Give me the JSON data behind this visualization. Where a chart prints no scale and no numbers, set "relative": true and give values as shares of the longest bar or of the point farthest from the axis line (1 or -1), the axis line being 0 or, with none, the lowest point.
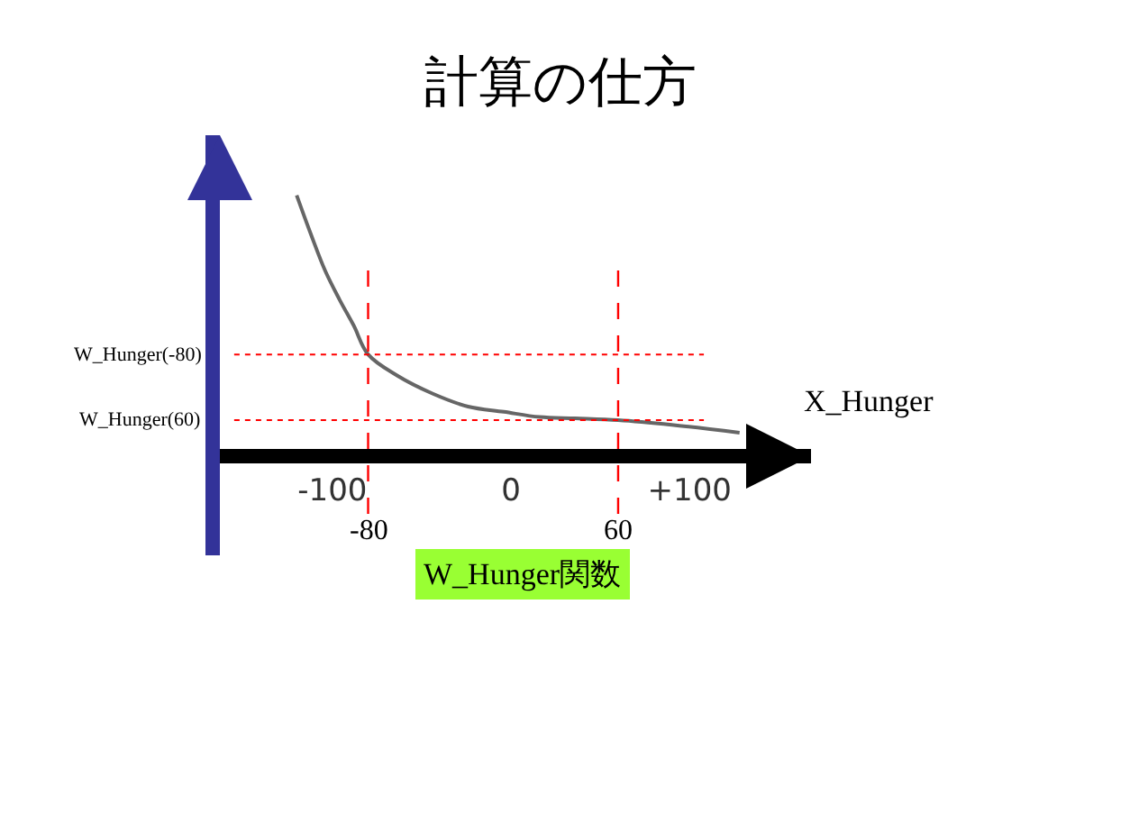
{
  "chart_data": {
    "type": "line",
    "title": "計算の仕方",
    "xlabel": "X_Hunger",
    "relative": true,
    "x": [
      -120,
      -112,
      -104,
      -96,
      -88,
      -80,
      -64,
      -44,
      -24,
      -4,
      16,
      36,
      60,
      90,
      128
    ],
    "series": [
      {
        "color": "#666666",
        "values": [
          1.0,
          0.85,
          0.71,
          0.6,
          0.5,
          0.39,
          0.31,
          0.24,
          0.19,
          0.17,
          0.15,
          0.145,
          0.138,
          0.12,
          0.09
        ]
      }
    ],
    "xlim": [
      -163,
      168
    ],
    "xticks": [
      -100,
      0,
      {
        "value": 100,
        "label": "+100"
      }
    ],
    "ref_lines": [
      {
        "axis": "x",
        "value": -80,
        "label": "-80",
        "color": "#ff0000",
        "line_style": "dashed"
      },
      {
        "axis": "x",
        "value": 60,
        "label": "60",
        "color": "#ff0000",
        "line_style": "dashed"
      },
      {
        "axis": "y",
        "value": 0.39,
        "label": "W_Hunger(-80)",
        "color": "#ff0000",
        "line_style": "dotted"
      },
      {
        "axis": "y",
        "value": 0.138,
        "label": "W_Hunger(60)",
        "color": "#ff0000",
        "line_style": "dotted"
      }
    ],
    "annotations": [
      "W_Hunger関数"
    ],
    "marker": "none",
    "line_style": "solid"
  }
}
